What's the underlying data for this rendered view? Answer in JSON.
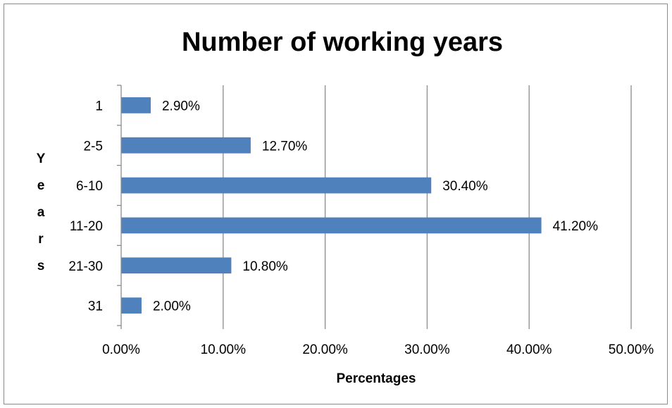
{
  "chart_data": {
    "type": "bar",
    "orientation": "horizontal",
    "title": "Number of working years",
    "xlabel": "Percentages",
    "ylabel": "Years",
    "categories": [
      "1",
      "2-5",
      "6-10",
      "11-20",
      "21-30",
      "31"
    ],
    "values": [
      2.9,
      12.7,
      30.4,
      41.2,
      10.8,
      2.0
    ],
    "data_labels": [
      "2.90%",
      "12.70%",
      "30.40%",
      "41.20%",
      "10.80%",
      "2.00%"
    ],
    "xlim": [
      0,
      50
    ],
    "x_ticks": [
      0,
      10,
      20,
      30,
      40,
      50
    ],
    "x_tick_labels": [
      "0.00%",
      "10.00%",
      "20.00%",
      "30.00%",
      "40.00%",
      "50.00%"
    ],
    "grid": "vertical",
    "legend": "none",
    "bar_color": "#4f81bd"
  }
}
